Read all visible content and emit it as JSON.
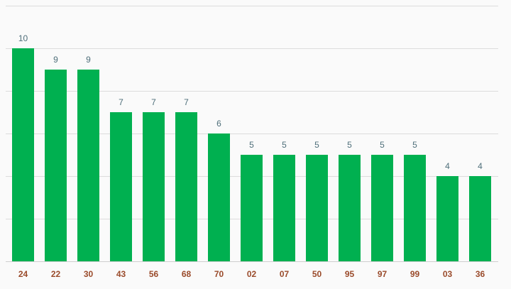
{
  "chart_data": {
    "type": "bar",
    "categories": [
      "24",
      "22",
      "30",
      "43",
      "56",
      "68",
      "70",
      "02",
      "07",
      "50",
      "95",
      "97",
      "99",
      "03",
      "36"
    ],
    "values": [
      10,
      9,
      9,
      7,
      7,
      7,
      6,
      5,
      5,
      5,
      5,
      5,
      5,
      4,
      4
    ],
    "title": "",
    "xlabel": "",
    "ylabel": "",
    "ylim": [
      0,
      12
    ],
    "grid": true,
    "legend": "none",
    "colors": {
      "bar": "#00b050",
      "value_label": "#4f6f7a",
      "category_label": "#9a4b2b",
      "grid": "#dcdcdc",
      "background": "#fafafa"
    }
  }
}
